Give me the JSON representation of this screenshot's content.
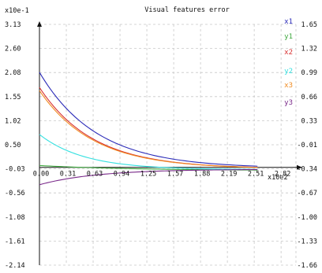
{
  "chart_data": {
    "type": "line",
    "title": "Visual features error",
    "y_multiplier_label": "x10e-1",
    "x_multiplier_label": "x10e2",
    "xlabel": "",
    "ylabel": "",
    "xlim": [
      0,
      3.0
    ],
    "ylim": [
      -2.14,
      3.13
    ],
    "y2lim": [
      -1.66,
      1.65
    ],
    "grid": true,
    "legend_position": "top-right",
    "x_ticks": [
      "0.00",
      "0.31",
      "0.63",
      "0.94",
      "1.25",
      "1.57",
      "1.88",
      "2.19",
      "2.51",
      "2.82"
    ],
    "x_tick_values": [
      0.0,
      0.314,
      0.628,
      0.942,
      1.256,
      1.57,
      1.884,
      2.198,
      2.512,
      2.826
    ],
    "y_ticks": [
      "3.13",
      "2.60",
      "2.08",
      "1.55",
      "1.02",
      "0.50",
      "-0.03",
      "-0.56",
      "-1.08",
      "-1.61",
      "-2.14"
    ],
    "y_tick_values": [
      3.13,
      2.603,
      2.076,
      1.549,
      1.022,
      0.495,
      -0.032,
      -0.559,
      -1.086,
      -1.613,
      -2.14
    ],
    "y2_ticks": [
      "1.65",
      "1.32",
      "0.99",
      "0.66",
      "0.33",
      "-0.01",
      "-0.34",
      "-0.67",
      "-1.00",
      "-1.33",
      "-1.66"
    ],
    "series": [
      {
        "name": "x1",
        "color": "#2a2ab8",
        "y0": 2.08,
        "y_end": -0.02,
        "decay": 1.5
      },
      {
        "name": "y1",
        "color": "#3fa83f",
        "y0": 0.04,
        "y_end": -0.07,
        "decay": 0.9
      },
      {
        "name": "x2",
        "color": "#d83030",
        "y0": 1.75,
        "y_end": -0.03,
        "decay": 1.6
      },
      {
        "name": "y2",
        "color": "#33e0e0",
        "y0": 0.72,
        "y_end": -0.05,
        "decay": 1.9
      },
      {
        "name": "x3",
        "color": "#f08a1f",
        "y0": 1.68,
        "y_end": -0.03,
        "decay": 1.6
      },
      {
        "name": "y3",
        "color": "#7a2a8a",
        "y0": -0.38,
        "y_end": -0.04,
        "decay": 1.5
      }
    ]
  }
}
